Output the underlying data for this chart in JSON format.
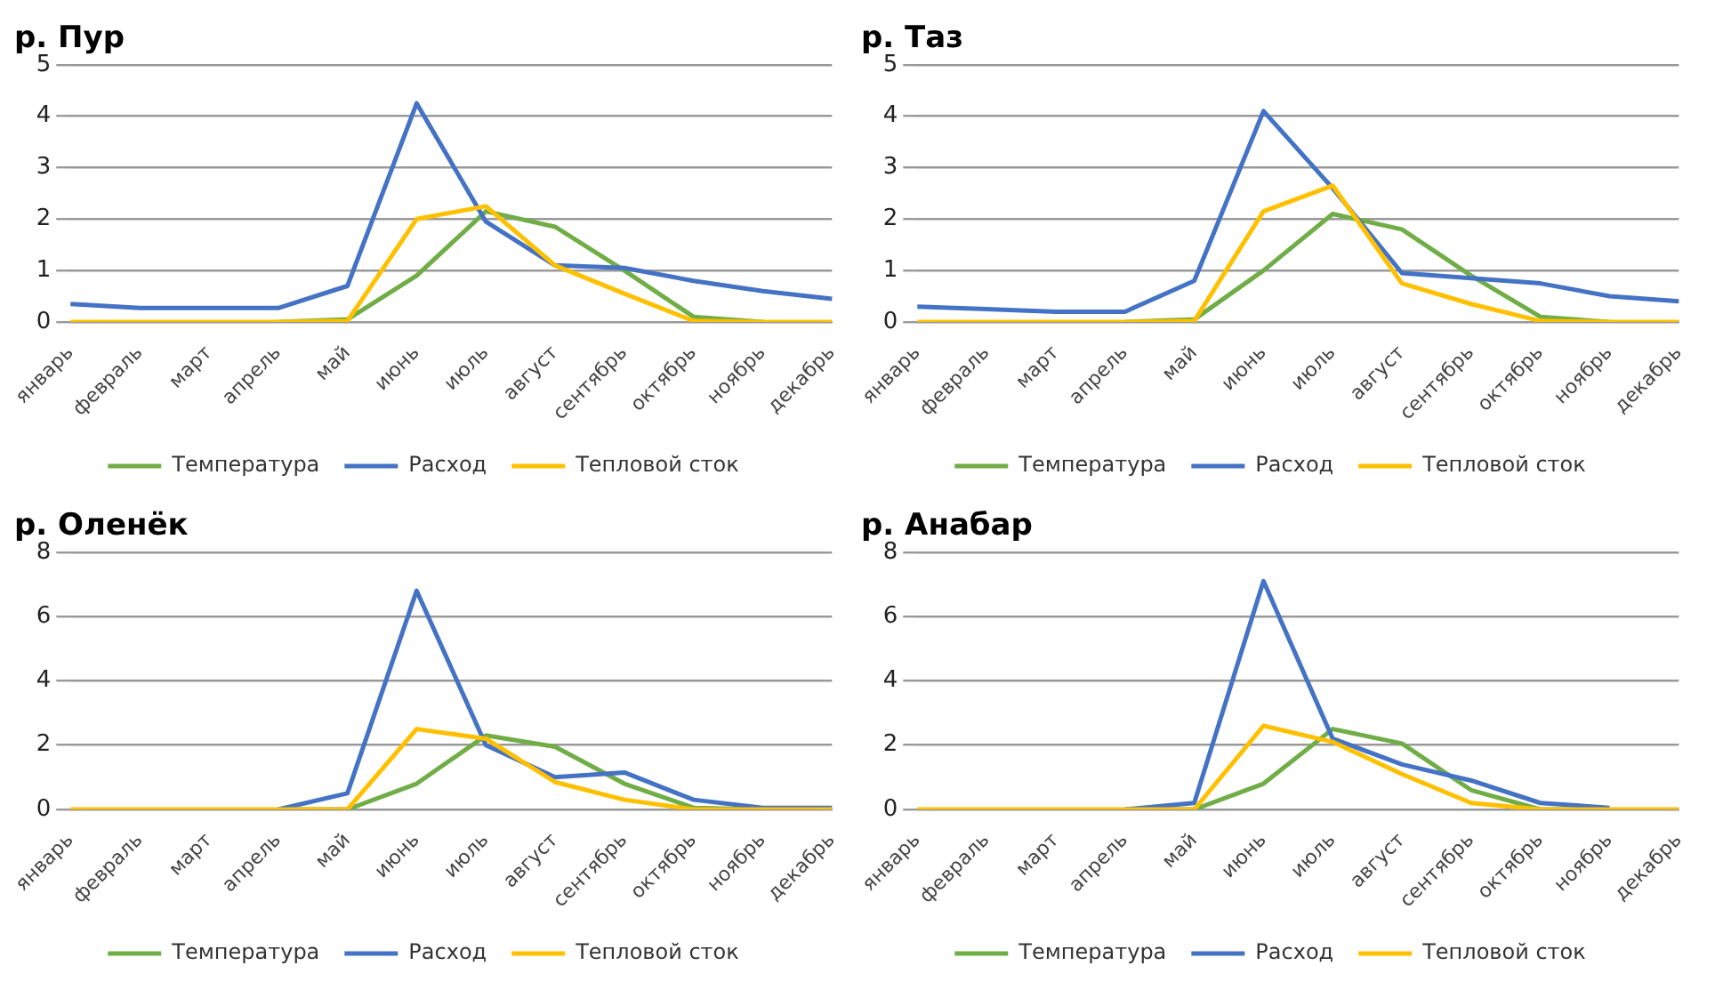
{
  "chart_data": [
    {
      "type": "line",
      "title": "р. Пур",
      "categories": [
        "январь",
        "февраль",
        "март",
        "апрель",
        "май",
        "июнь",
        "июль",
        "август",
        "сентябрь",
        "октябрь",
        "ноябрь",
        "декабрь"
      ],
      "series": [
        {
          "name": "Температура",
          "color": "#70ad47",
          "values": [
            null,
            null,
            null,
            0,
            0.05,
            0.9,
            2.15,
            1.85,
            1.0,
            0.1,
            0,
            null
          ]
        },
        {
          "name": "Расход",
          "color": "#4472c4",
          "values": [
            0.35,
            0.27,
            0.27,
            0.27,
            0.7,
            4.25,
            1.95,
            1.1,
            1.05,
            0.8,
            0.6,
            0.45
          ]
        },
        {
          "name": "Тепловой сток",
          "color": "#ffc000",
          "values": [
            0,
            0,
            0,
            0,
            0.02,
            2.0,
            2.25,
            1.1,
            0.55,
            0.02,
            0,
            0
          ]
        }
      ],
      "ylim": [
        0,
        5
      ],
      "yticks": [
        0,
        1,
        2,
        3,
        4,
        5
      ],
      "grid": "y",
      "legend": "bottom",
      "marker": "none"
    },
    {
      "type": "line",
      "title": "р. Таз",
      "categories": [
        "январь",
        "февраль",
        "март",
        "апрель",
        "май",
        "июнь",
        "июль",
        "август",
        "сентябрь",
        "октябрь",
        "ноябрь",
        "декабрь"
      ],
      "series": [
        {
          "name": "Температура",
          "color": "#70ad47",
          "values": [
            null,
            null,
            null,
            0,
            0.05,
            1.0,
            2.1,
            1.8,
            0.9,
            0.1,
            0,
            null
          ]
        },
        {
          "name": "Расход",
          "color": "#4472c4",
          "values": [
            0.3,
            0.25,
            0.2,
            0.2,
            0.8,
            4.1,
            2.6,
            0.95,
            0.85,
            0.75,
            0.5,
            0.4
          ]
        },
        {
          "name": "Тепловой сток",
          "color": "#ffc000",
          "values": [
            0,
            0,
            0,
            0,
            0.02,
            2.15,
            2.65,
            0.75,
            0.35,
            0.02,
            0,
            0
          ]
        }
      ],
      "ylim": [
        0,
        5
      ],
      "yticks": [
        0,
        1,
        2,
        3,
        4,
        5
      ],
      "grid": "y",
      "legend": "bottom",
      "marker": "none"
    },
    {
      "type": "line",
      "title": "р. Оленёк",
      "categories": [
        "январь",
        "февраль",
        "март",
        "апрель",
        "май",
        "июнь",
        "июль",
        "август",
        "сентябрь",
        "октябрь",
        "ноябрь",
        "декабрь"
      ],
      "series": [
        {
          "name": "Температура",
          "color": "#70ad47",
          "values": [
            null,
            null,
            null,
            0,
            0,
            0.8,
            2.3,
            1.95,
            0.8,
            0.05,
            0,
            null
          ]
        },
        {
          "name": "Расход",
          "color": "#4472c4",
          "values": [
            null,
            null,
            null,
            0,
            0.5,
            6.8,
            2.0,
            1.0,
            1.15,
            0.3,
            0.05,
            0.05
          ]
        },
        {
          "name": "Тепловой сток",
          "color": "#ffc000",
          "values": [
            0,
            0,
            0,
            0,
            0,
            2.5,
            2.2,
            0.85,
            0.3,
            0,
            0,
            0
          ]
        }
      ],
      "ylim": [
        0,
        8
      ],
      "yticks": [
        0,
        2,
        4,
        6,
        8
      ],
      "grid": "y",
      "legend": "bottom",
      "marker": "none"
    },
    {
      "type": "line",
      "title": "р. Анабар",
      "categories": [
        "январь",
        "февраль",
        "март",
        "апрель",
        "май",
        "июнь",
        "июль",
        "август",
        "сентябрь",
        "октябрь",
        "ноябрь",
        "декабрь"
      ],
      "series": [
        {
          "name": "Температура",
          "color": "#70ad47",
          "values": [
            null,
            null,
            null,
            0,
            0,
            0.8,
            2.5,
            2.05,
            0.6,
            0,
            0,
            null
          ]
        },
        {
          "name": "Расход",
          "color": "#4472c4",
          "values": [
            null,
            null,
            null,
            0,
            0.2,
            7.1,
            2.2,
            1.4,
            0.9,
            0.2,
            0.05,
            null
          ]
        },
        {
          "name": "Тепловой сток",
          "color": "#ffc000",
          "values": [
            0,
            0,
            0,
            0,
            0,
            2.6,
            2.1,
            1.1,
            0.2,
            0,
            0,
            0
          ]
        }
      ],
      "ylim": [
        0,
        8
      ],
      "yticks": [
        0,
        2,
        4,
        6,
        8
      ],
      "grid": "y",
      "legend": "bottom",
      "marker": "none"
    }
  ]
}
